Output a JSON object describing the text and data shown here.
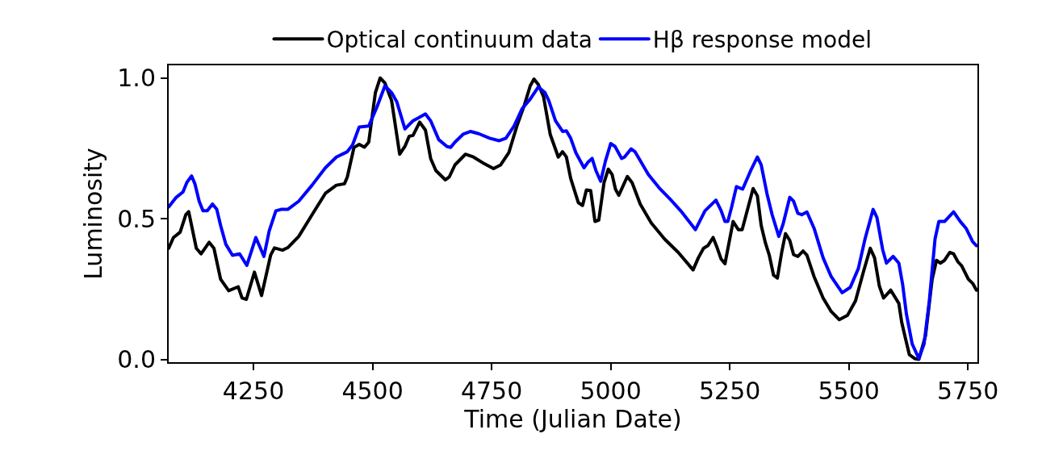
{
  "chart_data": {
    "type": "line",
    "xlabel": "Time (Julian Date)",
    "ylabel": "Luminosity",
    "xlim": [
      4072,
      5770
    ],
    "ylim": [
      -0.01,
      1.045
    ],
    "xticks": [
      4250,
      4500,
      4750,
      5000,
      5250,
      5500,
      5750
    ],
    "yticks": [
      {
        "value": 0,
        "label": "0.0"
      },
      {
        "value": 0.5,
        "label": "0.5"
      },
      {
        "value": 1,
        "label": "1.0"
      }
    ],
    "grid": false,
    "legend": "top",
    "marker": "none",
    "line_style": "solid",
    "series": [
      {
        "name": "Optical continuum data",
        "color": "#000000",
        "x": [
          4072,
          4082,
          4096,
          4108,
          4114,
          4130,
          4140,
          4157,
          4167,
          4181,
          4198,
          4218,
          4226,
          4235,
          4252,
          4267,
          4286,
          4294,
          4311,
          4322,
          4345,
          4373,
          4401,
          4424,
          4441,
          4447,
          4461,
          4472,
          4483,
          4492,
          4506,
          4516,
          4526,
          4540,
          4557,
          4568,
          4577,
          4585,
          4599,
          4611,
          4622,
          4633,
          4653,
          4661,
          4673,
          4695,
          4712,
          4735,
          4754,
          4769,
          4786,
          4803,
          4819,
          4831,
          4839,
          4848,
          4859,
          4873,
          4890,
          4899,
          4907,
          4916,
          4932,
          4941,
          4949,
          4958,
          4967,
          4975,
          4986,
          4995,
          5003,
          5010,
          5017,
          5035,
          5045,
          5062,
          5085,
          5113,
          5142,
          5173,
          5184,
          5195,
          5204,
          5215,
          5223,
          5232,
          5240,
          5257,
          5268,
          5276,
          5299,
          5308,
          5316,
          5325,
          5333,
          5342,
          5350,
          5359,
          5367,
          5376,
          5384,
          5393,
          5404,
          5412,
          5427,
          5446,
          5463,
          5480,
          5497,
          5514,
          5531,
          5545,
          5554,
          5564,
          5573,
          5588,
          5605,
          5611,
          5619,
          5627,
          5638,
          5647,
          5661,
          5675,
          5684,
          5692,
          5701,
          5712,
          5720,
          5729,
          5737,
          5751,
          5760,
          5768
        ],
        "values": [
          0.395,
          0.433,
          0.452,
          0.514,
          0.525,
          0.395,
          0.375,
          0.416,
          0.395,
          0.285,
          0.244,
          0.258,
          0.218,
          0.213,
          0.31,
          0.227,
          0.37,
          0.396,
          0.388,
          0.397,
          0.437,
          0.514,
          0.59,
          0.619,
          0.624,
          0.648,
          0.753,
          0.764,
          0.754,
          0.772,
          0.948,
          1.0,
          0.982,
          0.92,
          0.729,
          0.757,
          0.793,
          0.796,
          0.843,
          0.815,
          0.714,
          0.671,
          0.638,
          0.648,
          0.691,
          0.729,
          0.719,
          0.695,
          0.678,
          0.691,
          0.734,
          0.829,
          0.905,
          0.972,
          0.996,
          0.977,
          0.934,
          0.8,
          0.719,
          0.738,
          0.719,
          0.643,
          0.557,
          0.547,
          0.602,
          0.6,
          0.49,
          0.495,
          0.628,
          0.676,
          0.657,
          0.605,
          0.583,
          0.65,
          0.628,
          0.552,
          0.485,
          0.428,
          0.38,
          0.318,
          0.361,
          0.395,
          0.404,
          0.433,
          0.399,
          0.356,
          0.34,
          0.49,
          0.461,
          0.461,
          0.607,
          0.581,
          0.476,
          0.413,
          0.37,
          0.299,
          0.289,
          0.38,
          0.447,
          0.423,
          0.372,
          0.366,
          0.385,
          0.37,
          0.294,
          0.218,
          0.17,
          0.141,
          0.156,
          0.208,
          0.313,
          0.395,
          0.361,
          0.261,
          0.218,
          0.246,
          0.199,
          0.132,
          0.074,
          0.017,
          0.003,
          0.0,
          0.084,
          0.285,
          0.352,
          0.342,
          0.352,
          0.38,
          0.375,
          0.347,
          0.332,
          0.285,
          0.27,
          0.246
        ]
      },
      {
        "name": "Hβ response model",
        "color": "#0000ff",
        "x": [
          4072,
          4088,
          4102,
          4110,
          4120,
          4127,
          4136,
          4144,
          4153,
          4164,
          4173,
          4181,
          4192,
          4206,
          4221,
          4236,
          4255,
          4272,
          4283,
          4297,
          4308,
          4322,
          4345,
          4373,
          4401,
          4424,
          4447,
          4458,
          4472,
          4492,
          4509,
          4526,
          4540,
          4551,
          4568,
          4585,
          4596,
          4611,
          4622,
          4639,
          4656,
          4664,
          4673,
          4690,
          4706,
          4723,
          4746,
          4766,
          4780,
          4797,
          4814,
          4831,
          4848,
          4862,
          4870,
          4884,
          4899,
          4907,
          4916,
          4927,
          4944,
          4952,
          4961,
          4969,
          4979,
          4989,
          5000,
          5009,
          5023,
          5029,
          5043,
          5051,
          5079,
          5102,
          5124,
          5147,
          5178,
          5198,
          5221,
          5232,
          5240,
          5246,
          5254,
          5264,
          5277,
          5294,
          5308,
          5316,
          5328,
          5339,
          5353,
          5362,
          5376,
          5384,
          5393,
          5401,
          5412,
          5427,
          5446,
          5463,
          5486,
          5503,
          5520,
          5534,
          5551,
          5559,
          5571,
          5579,
          5593,
          5605,
          5613,
          5621,
          5633,
          5647,
          5658,
          5669,
          5681,
          5689,
          5701,
          5720,
          5734,
          5746,
          5760,
          5768
        ],
        "values": [
          0.542,
          0.576,
          0.595,
          0.628,
          0.652,
          0.624,
          0.562,
          0.528,
          0.528,
          0.552,
          0.533,
          0.476,
          0.409,
          0.37,
          0.375,
          0.334,
          0.433,
          0.366,
          0.456,
          0.528,
          0.533,
          0.533,
          0.562,
          0.619,
          0.681,
          0.719,
          0.738,
          0.762,
          0.826,
          0.829,
          0.896,
          0.972,
          0.948,
          0.915,
          0.819,
          0.848,
          0.858,
          0.872,
          0.848,
          0.781,
          0.757,
          0.753,
          0.772,
          0.8,
          0.81,
          0.802,
          0.786,
          0.777,
          0.786,
          0.829,
          0.891,
          0.925,
          0.968,
          0.948,
          0.92,
          0.848,
          0.81,
          0.812,
          0.786,
          0.734,
          0.681,
          0.7,
          0.714,
          0.671,
          0.633,
          0.705,
          0.767,
          0.757,
          0.714,
          0.719,
          0.748,
          0.738,
          0.657,
          0.609,
          0.571,
          0.528,
          0.461,
          0.528,
          0.566,
          0.528,
          0.49,
          0.49,
          0.542,
          0.614,
          0.605,
          0.671,
          0.719,
          0.691,
          0.59,
          0.514,
          0.437,
          0.481,
          0.576,
          0.562,
          0.519,
          0.514,
          0.524,
          0.466,
          0.361,
          0.294,
          0.237,
          0.256,
          0.323,
          0.428,
          0.533,
          0.504,
          0.39,
          0.342,
          0.366,
          0.342,
          0.266,
          0.16,
          0.055,
          0.003,
          0.055,
          0.208,
          0.428,
          0.49,
          0.49,
          0.524,
          0.49,
          0.466,
          0.418,
          0.404
        ]
      }
    ]
  }
}
